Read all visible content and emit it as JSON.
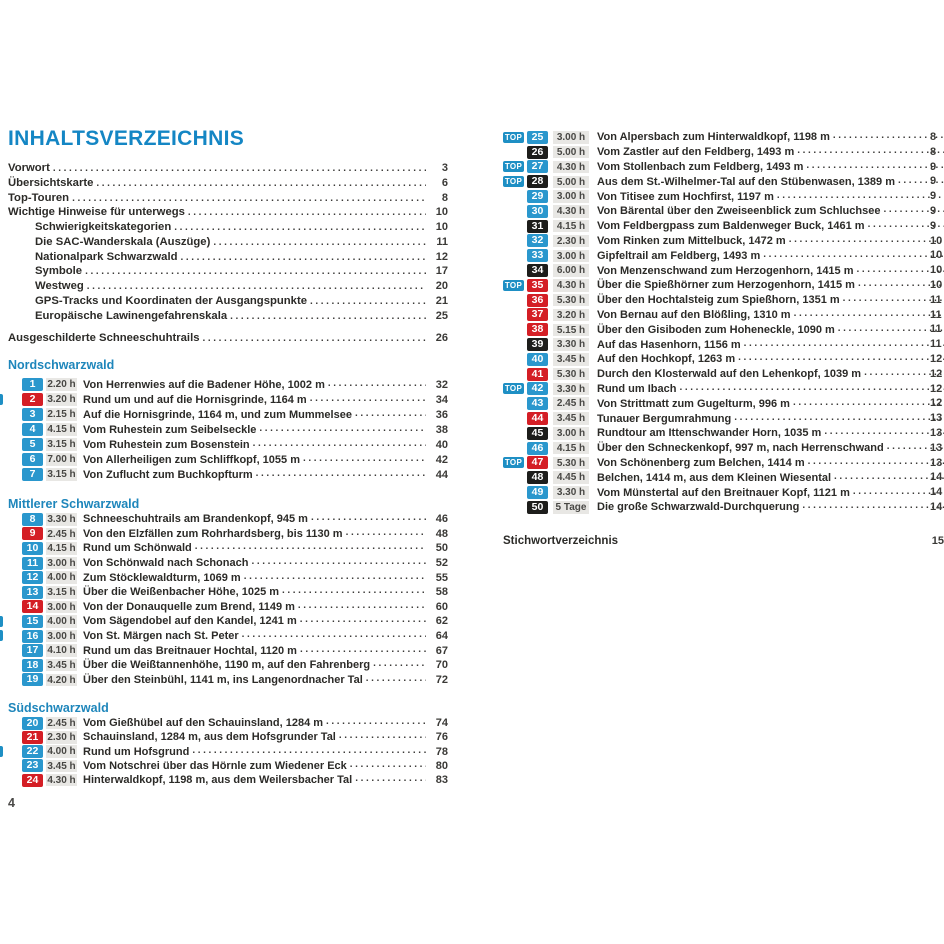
{
  "title": "INHALTSVERZEICHNIS",
  "labels": {
    "top_label": "TOP",
    "page_number_left": "4"
  },
  "colors": {
    "heading_blue": "#1486c4",
    "section_blue": "#1e86bb",
    "badge_blue": "#2a97cd",
    "badge_red": "#d41e25",
    "badge_black": "#1d1d1b",
    "time_bg_gray": "#e8e7e4",
    "text_dark": "#2c2b28"
  },
  "intro_items": [
    {
      "label": "Vorwort",
      "page": "3",
      "indent": 0
    },
    {
      "label": "Übersichtskarte",
      "page": "6",
      "indent": 0
    },
    {
      "label": "Top-Touren",
      "page": "8",
      "indent": 0
    },
    {
      "label": "Wichtige Hinweise für unterwegs",
      "page": "10",
      "indent": 0
    },
    {
      "label": "Schwierigkeitskategorien",
      "page": "10",
      "indent": 1
    },
    {
      "label": "Die SAC-Wanderskala (Auszüge)",
      "page": "11",
      "indent": 1
    },
    {
      "label": "Nationalpark Schwarzwald",
      "page": "12",
      "indent": 1
    },
    {
      "label": "Symbole",
      "page": "17",
      "indent": 1
    },
    {
      "label": "Westweg",
      "page": "20",
      "indent": 1
    },
    {
      "label": "GPS-Tracks und Koordinaten der Ausgangspunkte",
      "page": "21",
      "indent": 1
    },
    {
      "label": "Europäische Lawinengefahrenskala",
      "page": "25",
      "indent": 1
    }
  ],
  "trails_item": {
    "label": "Ausgeschilderte Schneeschuhtrails",
    "page": "26"
  },
  "left_sections": [
    {
      "header": "Nordschwarzwald",
      "tours": [
        {
          "num": "1",
          "badge": "blue",
          "top_cut": false,
          "time": "2.20 h",
          "title": "Von Herrenwies auf die Badener Höhe, 1002 m",
          "page": "32"
        },
        {
          "num": "2",
          "badge": "red",
          "top_cut": true,
          "time": "3.20 h",
          "title": "Rund um und auf die Hornisgrinde, 1164 m",
          "page": "34"
        },
        {
          "num": "3",
          "badge": "blue",
          "top_cut": false,
          "time": "2.15 h",
          "title": "Auf die Hornisgrinde, 1164 m, und zum Mummelsee",
          "page": "36"
        },
        {
          "num": "4",
          "badge": "blue",
          "top_cut": false,
          "time": "4.15 h",
          "title": "Vom Ruhestein zum Seibelseckle",
          "page": "38"
        },
        {
          "num": "5",
          "badge": "blue",
          "top_cut": false,
          "time": "3.15 h",
          "title": "Vom Ruhestein zum Bosenstein",
          "page": "40"
        },
        {
          "num": "6",
          "badge": "blue",
          "top_cut": false,
          "time": "7.00 h",
          "title": "Von Allerheiligen zum Schliffkopf, 1055 m",
          "page": "42"
        },
        {
          "num": "7",
          "badge": "blue",
          "top_cut": false,
          "time": "3.15 h",
          "title": "Von Zuflucht zum Buchkopfturm",
          "page": "44"
        }
      ]
    },
    {
      "header": "Mittlerer Schwarzwald",
      "tours": [
        {
          "num": "8",
          "badge": "blue",
          "top_cut": false,
          "time": "3.30 h",
          "title": "Schneeschuhtrails am Brandenkopf, 945 m",
          "page": "46"
        },
        {
          "num": "9",
          "badge": "red",
          "top_cut": false,
          "time": "2.45 h",
          "title": "Von den Elzfällen zum Rohrhardsberg, bis 1130 m",
          "page": "48"
        },
        {
          "num": "10",
          "badge": "blue",
          "top_cut": false,
          "time": "4.15 h",
          "title": "Rund um Schönwald",
          "page": "50"
        },
        {
          "num": "11",
          "badge": "blue",
          "top_cut": false,
          "time": "3.00 h",
          "title": "Von Schönwald nach Schonach",
          "page": "52"
        },
        {
          "num": "12",
          "badge": "blue",
          "top_cut": false,
          "time": "4.00 h",
          "title": "Zum Stöcklewaldturm, 1069 m",
          "page": "55"
        },
        {
          "num": "13",
          "badge": "blue",
          "top_cut": false,
          "time": "3.15 h",
          "title": "Über die Weißenbacher Höhe, 1025 m",
          "page": "58"
        },
        {
          "num": "14",
          "badge": "red",
          "top_cut": false,
          "time": "3.00 h",
          "title": "Von der Donauquelle zum Brend, 1149 m",
          "page": "60"
        },
        {
          "num": "15",
          "badge": "blue",
          "top_cut": true,
          "time": "4.00 h",
          "title": "Vom Sägendobel auf den Kandel, 1241 m",
          "page": "62"
        },
        {
          "num": "16",
          "badge": "blue",
          "top_cut": true,
          "time": "3.00 h",
          "title": "Von St. Märgen nach St. Peter",
          "page": "64"
        },
        {
          "num": "17",
          "badge": "blue",
          "top_cut": false,
          "time": "4.10 h",
          "title": "Rund um das Breitnauer Hochtal, 1120 m",
          "page": "67"
        },
        {
          "num": "18",
          "badge": "blue",
          "top_cut": false,
          "time": "3.45 h",
          "title": "Über die Weißtannenhöhe, 1190 m, auf den Fahrenberg",
          "page": "70"
        },
        {
          "num": "19",
          "badge": "blue",
          "top_cut": false,
          "time": "4.20 h",
          "title": "Über den Steinbühl, 1141 m, ins Langenordnacher Tal",
          "page": "72"
        }
      ]
    },
    {
      "header": "Südschwarzwald",
      "tours": [
        {
          "num": "20",
          "badge": "blue",
          "top_cut": false,
          "time": "2.45 h",
          "title": "Vom Gießhübel auf den Schauinsland, 1284 m",
          "page": "74"
        },
        {
          "num": "21",
          "badge": "red",
          "top_cut": false,
          "time": "2.30 h",
          "title": "Schauinsland, 1284 m, aus dem Hofsgrunder Tal",
          "page": "76"
        },
        {
          "num": "22",
          "badge": "blue",
          "top_cut": true,
          "time": "4.00 h",
          "title": "Rund um Hofsgrund",
          "page": "78"
        },
        {
          "num": "23",
          "badge": "blue",
          "top_cut": false,
          "time": "3.45 h",
          "title": "Vom Notschrei über das Hörnle zum Wiedener Eck",
          "page": "80"
        },
        {
          "num": "24",
          "badge": "red",
          "top_cut": false,
          "time": "4.30 h",
          "title": "Hinterwaldkopf, 1198 m, aus dem Weilersbacher Tal",
          "page": "83"
        }
      ]
    }
  ],
  "right_tours": [
    {
      "num": "25",
      "badge": "blue",
      "top": true,
      "time": "3.00 h",
      "title": "Von Alpersbach zum Hinterwaldkopf, 1198 m",
      "page_visible": "8"
    },
    {
      "num": "26",
      "badge": "black",
      "top": false,
      "time": "5.00 h",
      "title": "Vom Zastler auf den Feldberg, 1493 m",
      "page_visible": "8"
    },
    {
      "num": "27",
      "badge": "blue",
      "top": true,
      "time": "4.30 h",
      "title": "Vom Stollenbach zum Feldberg, 1493 m",
      "page_visible": "9"
    },
    {
      "num": "28",
      "badge": "black",
      "top": true,
      "time": "5.00 h",
      "title": "Aus dem St.-Wilhelmer-Tal auf den Stübenwasen, 1389 m",
      "page_visible": "9"
    },
    {
      "num": "29",
      "badge": "blue",
      "top": false,
      "time": "3.00 h",
      "title": "Von Titisee zum Hochfirst, 1197 m",
      "page_visible": "9"
    },
    {
      "num": "30",
      "badge": "blue",
      "top": false,
      "time": "4.30 h",
      "title": "Von Bärental über den Zweiseenblick zum Schluchsee",
      "page_visible": "9"
    },
    {
      "num": "31",
      "badge": "black",
      "top": false,
      "time": "4.15 h",
      "title": "Vom Feldbergpass zum Baldenweger Buck, 1461 m",
      "page_visible": "9"
    },
    {
      "num": "32",
      "badge": "blue",
      "top": false,
      "time": "2.30 h",
      "title": "Vom Rinken zum Mittelbuck, 1472 m",
      "page_visible": "10"
    },
    {
      "num": "33",
      "badge": "blue",
      "top": false,
      "time": "3.00 h",
      "title": "Gipfeltrail am Feldberg, 1493 m",
      "page_visible": "10"
    },
    {
      "num": "34",
      "badge": "black",
      "top": false,
      "time": "6.00 h",
      "title": "Von Menzenschwand zum Herzogenhorn, 1415 m",
      "page_visible": "10"
    },
    {
      "num": "35",
      "badge": "red",
      "top": true,
      "time": "4.30 h",
      "title": "Über die Spießhörner zum Herzogenhorn, 1415 m",
      "page_visible": "10"
    },
    {
      "num": "36",
      "badge": "red",
      "top": false,
      "time": "5.30 h",
      "title": "Über den Hochtalsteig zum Spießhorn, 1351 m",
      "page_visible": "11"
    },
    {
      "num": "37",
      "badge": "red",
      "top": false,
      "time": "3.20 h",
      "title": "Von Bernau auf den Blößling, 1310 m",
      "page_visible": "11"
    },
    {
      "num": "38",
      "badge": "red",
      "top": false,
      "time": "5.15 h",
      "title": "Über den Gisiboden zum Hoheneckle, 1090 m",
      "page_visible": "11"
    },
    {
      "num": "39",
      "badge": "black",
      "top": false,
      "time": "3.30 h",
      "title": "Auf das Hasenhorn, 1156 m",
      "page_visible": "11"
    },
    {
      "num": "40",
      "badge": "blue",
      "top": false,
      "time": "3.45 h",
      "title": "Auf den Hochkopf, 1263 m",
      "page_visible": "12"
    },
    {
      "num": "41",
      "badge": "red",
      "top": false,
      "time": "5.30 h",
      "title": "Durch den Klosterwald auf den Lehenkopf, 1039 m",
      "page_visible": "12"
    },
    {
      "num": "42",
      "badge": "blue",
      "top": true,
      "time": "3.30 h",
      "title": "Rund um Ibach",
      "page_visible": "12"
    },
    {
      "num": "43",
      "badge": "blue",
      "top": false,
      "time": "2.45 h",
      "title": "Von Strittmatt zum Gugelturm, 996 m",
      "page_visible": "12"
    },
    {
      "num": "44",
      "badge": "red",
      "top": false,
      "time": "3.45 h",
      "title": "Tunauer Bergumrahmung",
      "page_visible": "13"
    },
    {
      "num": "45",
      "badge": "black",
      "top": false,
      "time": "3.00 h",
      "title": "Rundtour am Ittenschwander Horn, 1035 m",
      "page_visible": "13"
    },
    {
      "num": "46",
      "badge": "blue",
      "top": false,
      "time": "4.15 h",
      "title": "Über den Schneckenkopf, 997 m, nach Herrenschwand",
      "page_visible": "13"
    },
    {
      "num": "47",
      "badge": "red",
      "top": true,
      "time": "5.30 h",
      "title": "Von Schönenberg zum Belchen, 1414 m",
      "page_visible": "13"
    },
    {
      "num": "48",
      "badge": "black",
      "top": false,
      "time": "4.45 h",
      "title": "Belchen, 1414 m, aus dem Kleinen Wiesental",
      "page_visible": "14"
    },
    {
      "num": "49",
      "badge": "blue",
      "top": false,
      "time": "3.30 h",
      "title": "Vom Münstertal auf den Breitnauer Kopf, 1121 m",
      "page_visible": "14"
    },
    {
      "num": "50",
      "badge": "black",
      "top": false,
      "time": "5 Tage",
      "title": "Die große Schwarzwald-Durchquerung",
      "page_visible": "14"
    }
  ],
  "index_item": {
    "label": "Stichwortverzeichnis",
    "page_visible": "15"
  }
}
